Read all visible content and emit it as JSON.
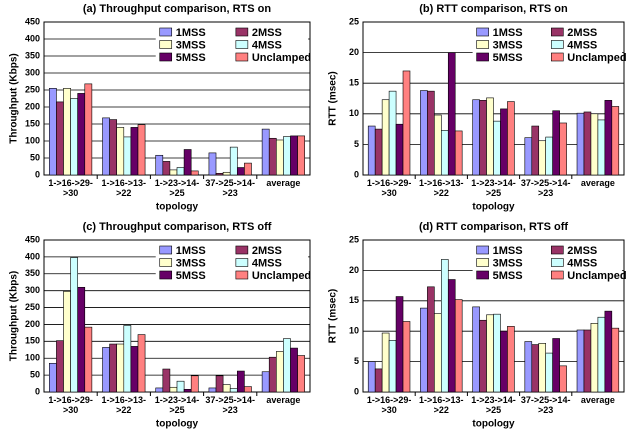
{
  "chart_data": [
    {
      "type": "bar",
      "title": "(a) Throughput comparison, RTS on",
      "xlabel": "topology",
      "ylabel": "Throughput (Kbps)",
      "categories": [
        "1->16->29->30",
        "1->16->13->22",
        "1->23->14->25",
        "37->25->14->23",
        "average"
      ],
      "series": [
        {
          "name": "1MSS",
          "color": "#9999ff",
          "values": [
            255,
            168,
            58,
            65,
            135
          ]
        },
        {
          "name": "2MSS",
          "color": "#993366",
          "values": [
            215,
            163,
            40,
            5,
            108
          ]
        },
        {
          "name": "3MSS",
          "color": "#ffffcc",
          "values": [
            255,
            140,
            15,
            8,
            103
          ]
        },
        {
          "name": "4MSS",
          "color": "#ccffff",
          "values": [
            225,
            112,
            22,
            82,
            113
          ]
        },
        {
          "name": "5MSS",
          "color": "#660066",
          "values": [
            240,
            140,
            75,
            22,
            115
          ]
        },
        {
          "name": "Unclamped",
          "color": "#ff8080",
          "values": [
            268,
            148,
            12,
            35,
            115
          ]
        }
      ],
      "ylim": [
        0,
        450
      ],
      "yticks": [
        0,
        50,
        100,
        150,
        200,
        250,
        300,
        350,
        400,
        450
      ],
      "grid": true,
      "legend": "upper right"
    },
    {
      "type": "bar",
      "title": "(b) RTT comparison, RTS on",
      "xlabel": "topology",
      "ylabel": "RTT (msec)",
      "categories": [
        "1->16->29->30",
        "1->16->13->22",
        "1->23->14->25",
        "37->25->14->23",
        "average"
      ],
      "series": [
        {
          "name": "1MSS",
          "color": "#9999ff",
          "values": [
            8,
            13.8,
            12.3,
            6.1,
            10.1
          ]
        },
        {
          "name": "2MSS",
          "color": "#993366",
          "values": [
            7.5,
            13.7,
            12.2,
            8,
            10.3
          ]
        },
        {
          "name": "3MSS",
          "color": "#ffffcc",
          "values": [
            12.3,
            9.8,
            12.6,
            5.6,
            10
          ]
        },
        {
          "name": "4MSS",
          "color": "#ccffff",
          "values": [
            13.7,
            7.3,
            8.8,
            6.2,
            9
          ]
        },
        {
          "name": "5MSS",
          "color": "#660066",
          "values": [
            8.3,
            20,
            10.8,
            10.5,
            12.2
          ]
        },
        {
          "name": "Unclamped",
          "color": "#ff8080",
          "values": [
            17,
            7.2,
            12,
            8.5,
            11.2
          ]
        }
      ],
      "ylim": [
        0,
        25
      ],
      "yticks": [
        0,
        5,
        10,
        15,
        20,
        25
      ],
      "grid": true,
      "legend": "upper right"
    },
    {
      "type": "bar",
      "title": "(c) Throughput comparison, RTS off",
      "xlabel": "topology",
      "ylabel": "Throughput (Kbps)",
      "categories": [
        "1->16->29->30",
        "1->16->13->22",
        "1->23->14->25",
        "37->25->14->23",
        "average"
      ],
      "series": [
        {
          "name": "1MSS",
          "color": "#9999ff",
          "values": [
            85,
            132,
            12,
            12,
            60
          ]
        },
        {
          "name": "2MSS",
          "color": "#993366",
          "values": [
            152,
            142,
            68,
            48,
            103
          ]
        },
        {
          "name": "3MSS",
          "color": "#ffffcc",
          "values": [
            298,
            142,
            14,
            22,
            120
          ]
        },
        {
          "name": "4MSS",
          "color": "#ccffff",
          "values": [
            398,
            197,
            32,
            10,
            158
          ]
        },
        {
          "name": "5MSS",
          "color": "#660066",
          "values": [
            310,
            135,
            8,
            62,
            130
          ]
        },
        {
          "name": "Unclamped",
          "color": "#ff8080",
          "values": [
            192,
            170,
            48,
            16,
            108
          ]
        }
      ],
      "ylim": [
        0,
        450
      ],
      "yticks": [
        0,
        50,
        100,
        150,
        200,
        250,
        300,
        350,
        400,
        450
      ],
      "grid": true,
      "legend": "upper right"
    },
    {
      "type": "bar",
      "title": "(d) RTT comparison, RTS off",
      "xlabel": "topology",
      "ylabel": "RTT (msec)",
      "categories": [
        "1->16->29->30",
        "1->16->13->22",
        "1->23->14->25",
        "37->25->14->23",
        "average"
      ],
      "series": [
        {
          "name": "1MSS",
          "color": "#9999ff",
          "values": [
            5,
            13.8,
            14,
            8.3,
            10.2
          ]
        },
        {
          "name": "2MSS",
          "color": "#993366",
          "values": [
            3.8,
            17.3,
            11.8,
            7.8,
            10.2
          ]
        },
        {
          "name": "3MSS",
          "color": "#ffffcc",
          "values": [
            9.7,
            12.9,
            12.7,
            8,
            11.3
          ]
        },
        {
          "name": "4MSS",
          "color": "#ccffff",
          "values": [
            8.5,
            21.8,
            12.8,
            6.4,
            12.3
          ]
        },
        {
          "name": "5MSS",
          "color": "#660066",
          "values": [
            15.7,
            18.5,
            10,
            8.8,
            13.3
          ]
        },
        {
          "name": "Unclamped",
          "color": "#ff8080",
          "values": [
            11.6,
            15.2,
            10.8,
            4.3,
            10.5
          ]
        }
      ],
      "ylim": [
        0,
        25
      ],
      "yticks": [
        0,
        5,
        10,
        15,
        20,
        25
      ],
      "grid": true,
      "legend": "upper right"
    }
  ]
}
